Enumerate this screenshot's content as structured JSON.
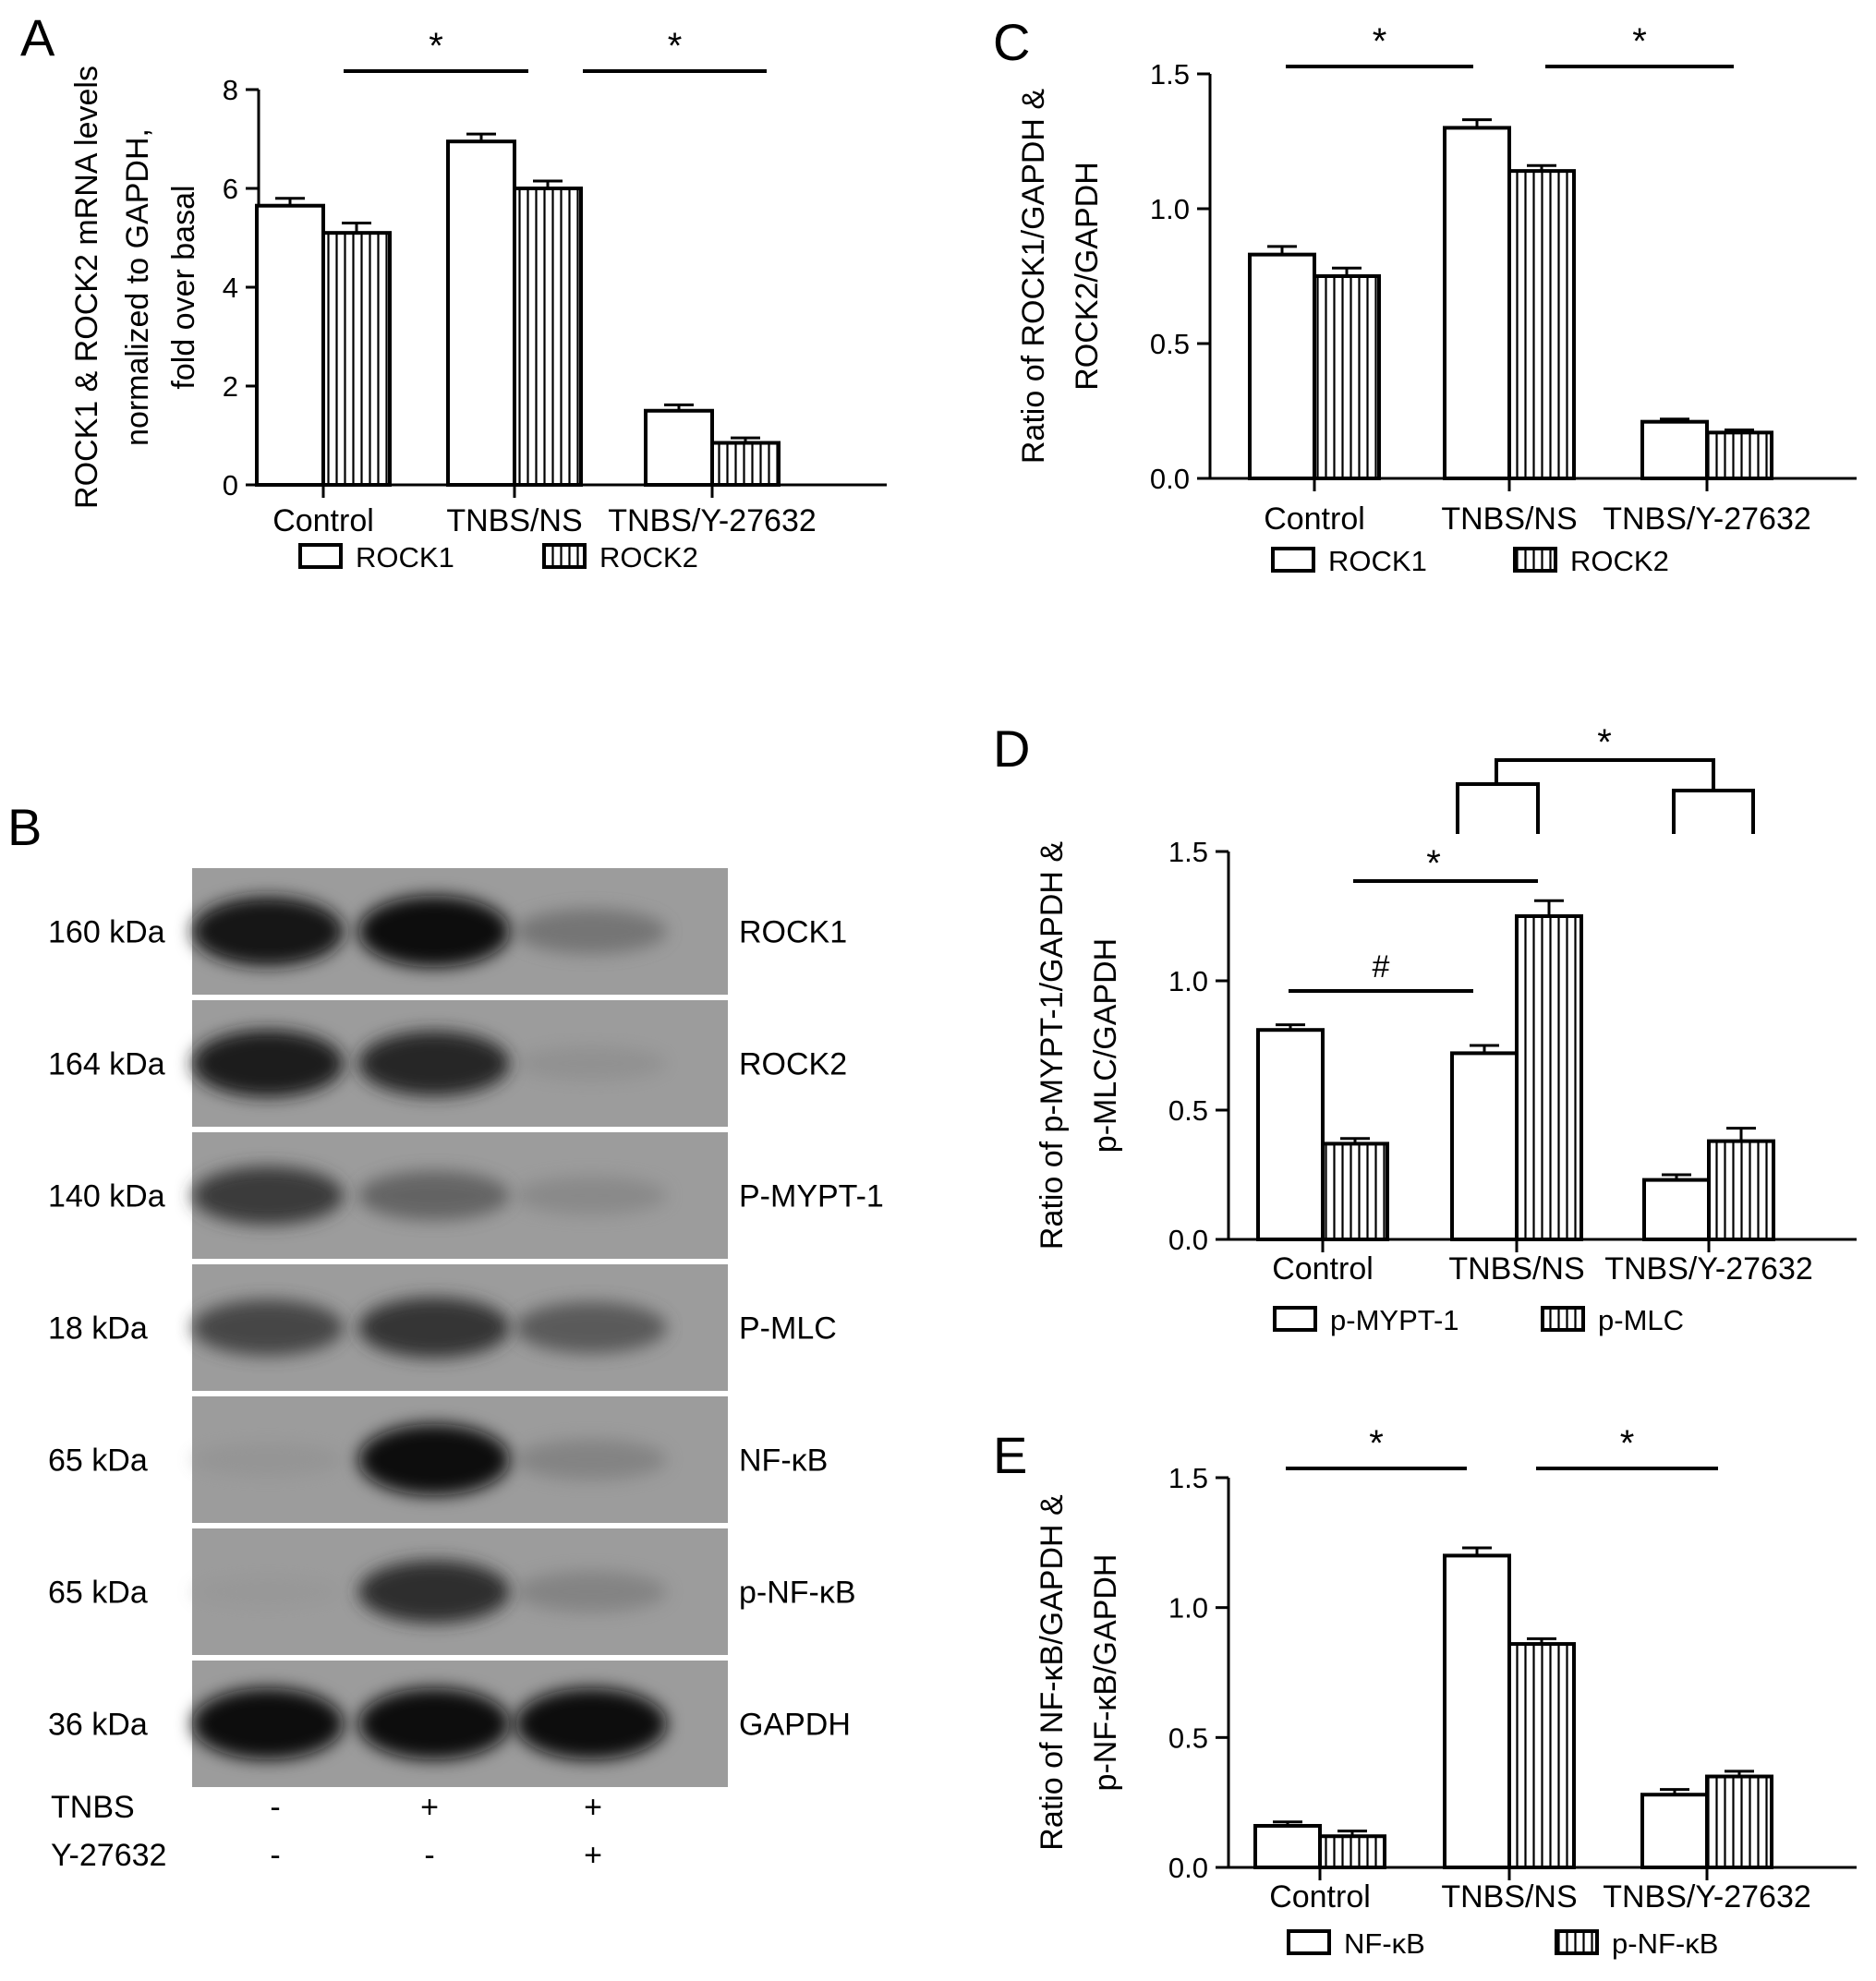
{
  "chart_data": [
    {
      "id": "A",
      "panel_letter": "A",
      "type": "bar",
      "categories": [
        "Control",
        "TNBS/NS",
        "TNBS/Y-27632"
      ],
      "ylabel_lines": [
        "ROCK1 & ROCK2 mRNA levels",
        "normalized to GAPDH,",
        "fold over basal"
      ],
      "yticks": [
        "0",
        "2",
        "4",
        "6",
        "8"
      ],
      "ylim": [
        0,
        8
      ],
      "series": [
        {
          "name": "ROCK1",
          "values": [
            5.65,
            6.95,
            1.5
          ],
          "errors": [
            0.15,
            0.15,
            0.12
          ]
        },
        {
          "name": "ROCK2",
          "values": [
            5.1,
            6.0,
            0.85
          ],
          "errors": [
            0.2,
            0.15,
            0.1
          ]
        }
      ],
      "significance": [
        {
          "label": "*",
          "from": 0,
          "to": 1
        },
        {
          "label": "*",
          "from": 1,
          "to": 2
        }
      ],
      "legend": [
        "ROCK1",
        "ROCK2"
      ],
      "legend_position": "bottom"
    },
    {
      "id": "C",
      "panel_letter": "C",
      "type": "bar",
      "categories": [
        "Control",
        "TNBS/NS",
        "TNBS/Y-27632"
      ],
      "ylabel_lines": [
        "Ratio of ROCK1/GAPDH &",
        "ROCK2/GAPDH"
      ],
      "yticks": [
        "0.0",
        "0.5",
        "1.0",
        "1.5"
      ],
      "ylim": [
        0,
        1.5
      ],
      "series": [
        {
          "name": "ROCK1",
          "values": [
            0.83,
            1.3,
            0.21
          ],
          "errors": [
            0.03,
            0.03,
            0.01
          ]
        },
        {
          "name": "ROCK2",
          "values": [
            0.75,
            1.14,
            0.17
          ],
          "errors": [
            0.03,
            0.02,
            0.01
          ]
        }
      ],
      "significance": [
        {
          "label": "*",
          "from": 0,
          "to": 1
        },
        {
          "label": "*",
          "from": 1,
          "to": 2
        }
      ],
      "legend": [
        "ROCK1",
        "ROCK2"
      ],
      "legend_position": "bottom"
    },
    {
      "id": "D",
      "panel_letter": "D",
      "type": "bar",
      "categories": [
        "Control",
        "TNBS/NS",
        "TNBS/Y-27632"
      ],
      "ylabel_lines": [
        "Ratio of p-MYPT-1/GAPDH &",
        "p-MLC/GAPDH"
      ],
      "yticks": [
        "0.0",
        "0.5",
        "1.0",
        "1.5"
      ],
      "ylim": [
        0,
        1.5
      ],
      "series": [
        {
          "name": "p-MYPT-1",
          "values": [
            0.81,
            0.72,
            0.23
          ],
          "errors": [
            0.02,
            0.03,
            0.02
          ]
        },
        {
          "name": "p-MLC",
          "values": [
            0.37,
            1.25,
            0.38
          ],
          "errors": [
            0.02,
            0.06,
            0.05
          ]
        }
      ],
      "significance": [
        {
          "label": "#",
          "note": "Control vs TNBS/NS, p-MYPT-1"
        },
        {
          "label": "*",
          "note": "Control vs TNBS/NS, p-MLC"
        },
        {
          "label": "*",
          "note": "TNBS/NS vs TNBS/Y-27632"
        }
      ],
      "legend": [
        "p-MYPT-1",
        "p-MLC"
      ],
      "legend_position": "bottom"
    },
    {
      "id": "E",
      "panel_letter": "E",
      "type": "bar",
      "categories": [
        "Control",
        "TNBS/NS",
        "TNBS/Y-27632"
      ],
      "ylabel_lines": [
        "Ratio of NF-κB/GAPDH &",
        "p-NF-κB/GAPDH"
      ],
      "yticks": [
        "0.0",
        "0.5",
        "1.0",
        "1.5"
      ],
      "ylim": [
        0,
        1.5
      ],
      "series": [
        {
          "name": "NF-κB",
          "values": [
            0.16,
            1.2,
            0.28
          ],
          "errors": [
            0.015,
            0.03,
            0.02
          ]
        },
        {
          "name": "p-NF-κB",
          "values": [
            0.12,
            0.86,
            0.35
          ],
          "errors": [
            0.02,
            0.02,
            0.02
          ]
        }
      ],
      "significance": [
        {
          "label": "*",
          "from": 0,
          "to": 1
        },
        {
          "label": "*",
          "from": 1,
          "to": 2
        }
      ],
      "legend": [
        "NF-κB",
        "p-NF-κB"
      ],
      "legend_position": "bottom"
    }
  ],
  "blot": {
    "panel_letter": "B",
    "rows": [
      {
        "mw": "160 kDa",
        "protein": "ROCK1",
        "intensity": [
          0.9,
          0.95,
          0.35
        ]
      },
      {
        "mw": "164 kDa",
        "protein": "ROCK2",
        "intensity": [
          0.85,
          0.8,
          0.12
        ]
      },
      {
        "mw": "140 kDa",
        "protein": "P-MYPT-1",
        "intensity": [
          0.65,
          0.45,
          0.2
        ]
      },
      {
        "mw": "18 kDa",
        "protein": "P-MLC",
        "intensity": [
          0.6,
          0.7,
          0.5
        ]
      },
      {
        "mw": "65 kDa",
        "protein": "NF-κB",
        "intensity": [
          0.08,
          0.95,
          0.25
        ]
      },
      {
        "mw": "65 kDa",
        "protein": "p-NF-κB",
        "intensity": [
          0.03,
          0.75,
          0.25
        ]
      },
      {
        "mw": "36 kDa",
        "protein": "GAPDH",
        "intensity": [
          0.95,
          0.95,
          0.95
        ]
      }
    ],
    "treatments": [
      {
        "name": "TNBS",
        "values": [
          "-",
          "+",
          "+"
        ]
      },
      {
        "name": "Y-27632",
        "values": [
          "-",
          "-",
          "+"
        ]
      }
    ]
  }
}
